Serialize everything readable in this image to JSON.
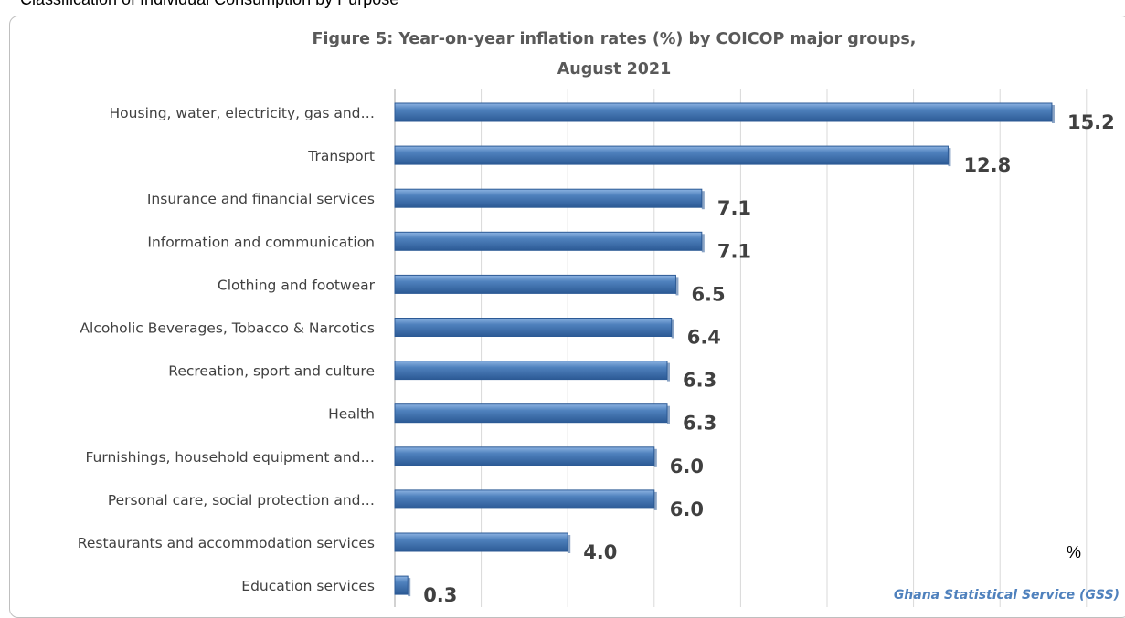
{
  "caption": "Classification of Individual Consumption by Purpose",
  "chart_data": {
    "type": "bar",
    "orientation": "horizontal",
    "title": "Figure 5: Year-on-year inflation rates (%) by  COICOP major groups,",
    "subtitle": "August  2021",
    "categories": [
      "Housing, water, electricity, gas and…",
      "Transport",
      "Insurance and financial services",
      "Information and communication",
      "Clothing and footwear",
      "Alcoholic Beverages, Tobacco & Narcotics",
      "Recreation, sport and culture",
      "Health",
      "Furnishings, household equipment and…",
      "Personal care, social protection and…",
      "Restaurants and accommodation services",
      "Education services"
    ],
    "values": [
      15.2,
      12.8,
      7.1,
      7.1,
      6.5,
      6.4,
      6.3,
      6.3,
      6.0,
      6.0,
      4.0,
      0.3
    ],
    "value_labels": [
      "15.2",
      "12.8",
      "7.1",
      "7.1",
      "6.5",
      "6.4",
      "6.3",
      "6.3",
      "6.0",
      "6.0",
      "4.0",
      "0.3"
    ],
    "unit_label": "%",
    "source": "Ghana Statistical Service (GSS)",
    "xlim": [
      0,
      16
    ],
    "grid": true,
    "bar_color": "#4f81bd",
    "bar_color_dark": "#2c5a95",
    "bar_color_light": "#8db3e2",
    "legend": "none"
  }
}
